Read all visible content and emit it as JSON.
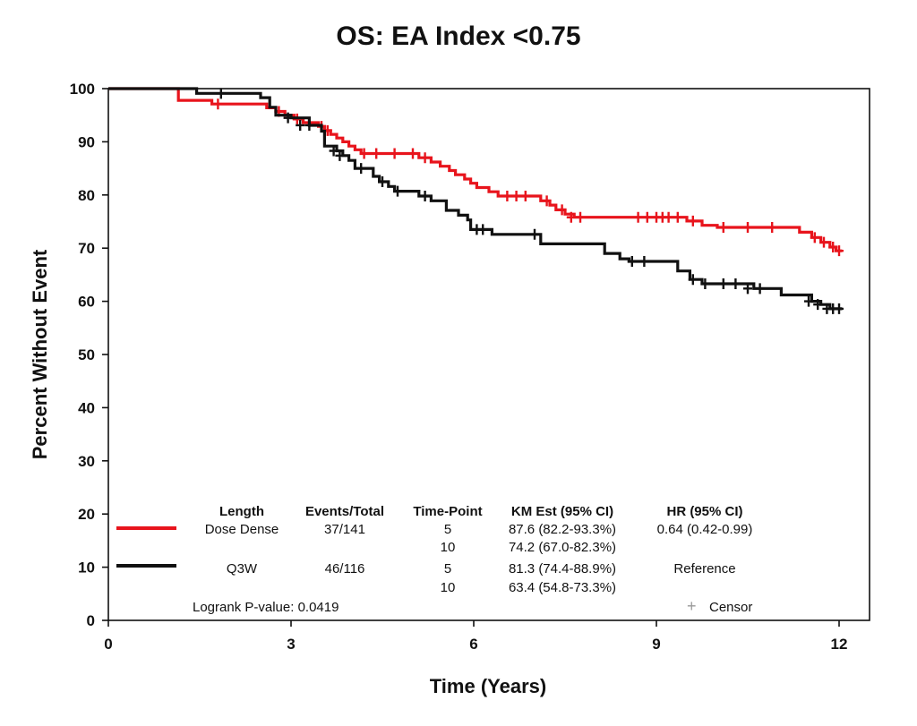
{
  "chart_data": {
    "type": "line",
    "title": "OS: EA Index <0.75",
    "xlabel": "Time (Years)",
    "ylabel": "Percent Without Event",
    "xlim": [
      0,
      12.5
    ],
    "ylim": [
      0,
      100
    ],
    "xticks": [
      0,
      3,
      6,
      9,
      12
    ],
    "yticks": [
      0,
      10,
      20,
      30,
      40,
      50,
      60,
      70,
      80,
      90,
      100
    ],
    "grid": false,
    "step": true,
    "series": [
      {
        "name": "Dose Dense",
        "color": "#e8141c",
        "points": [
          [
            0,
            100
          ],
          [
            0.7,
            100
          ],
          [
            1.1,
            100
          ],
          [
            1.15,
            97.8
          ],
          [
            1.7,
            97.1
          ],
          [
            2.6,
            96.4
          ],
          [
            2.75,
            95.7
          ],
          [
            2.9,
            95.0
          ],
          [
            3.05,
            94.3
          ],
          [
            3.2,
            93.6
          ],
          [
            3.45,
            92.9
          ],
          [
            3.55,
            92.1
          ],
          [
            3.65,
            91.4
          ],
          [
            3.75,
            90.7
          ],
          [
            3.85,
            90.0
          ],
          [
            3.95,
            89.2
          ],
          [
            4.05,
            88.5
          ],
          [
            4.15,
            87.8
          ],
          [
            4.85,
            87.8
          ],
          [
            5.1,
            87.0
          ],
          [
            5.3,
            86.2
          ],
          [
            5.45,
            85.4
          ],
          [
            5.6,
            84.6
          ],
          [
            5.7,
            83.8
          ],
          [
            5.85,
            83.0
          ],
          [
            5.95,
            82.2
          ],
          [
            6.05,
            81.4
          ],
          [
            6.25,
            80.6
          ],
          [
            6.4,
            79.8
          ],
          [
            6.9,
            79.8
          ],
          [
            7.1,
            78.9
          ],
          [
            7.25,
            78.1
          ],
          [
            7.35,
            77.2
          ],
          [
            7.5,
            76.4
          ],
          [
            7.65,
            75.8
          ],
          [
            9.4,
            75.8
          ],
          [
            9.5,
            75.1
          ],
          [
            9.75,
            74.3
          ],
          [
            10.0,
            73.9
          ],
          [
            11.25,
            73.9
          ],
          [
            11.35,
            73.0
          ],
          [
            11.55,
            72.0
          ],
          [
            11.7,
            71.1
          ],
          [
            11.85,
            70.2
          ],
          [
            11.95,
            69.5
          ],
          [
            12.05,
            69.5
          ]
        ],
        "censor_points": [
          [
            1.8,
            97.1
          ],
          [
            2.8,
            95.7
          ],
          [
            3.1,
            94.3
          ],
          [
            3.5,
            92.9
          ],
          [
            3.6,
            92.1
          ],
          [
            4.2,
            87.8
          ],
          [
            4.4,
            87.8
          ],
          [
            4.7,
            87.8
          ],
          [
            5.0,
            87.8
          ],
          [
            5.2,
            87.0
          ],
          [
            6.55,
            79.8
          ],
          [
            6.7,
            79.8
          ],
          [
            6.85,
            79.8
          ],
          [
            7.2,
            78.9
          ],
          [
            7.45,
            77.2
          ],
          [
            7.6,
            75.8
          ],
          [
            7.75,
            75.8
          ],
          [
            8.7,
            75.8
          ],
          [
            8.85,
            75.8
          ],
          [
            9.0,
            75.8
          ],
          [
            9.1,
            75.8
          ],
          [
            9.2,
            75.8
          ],
          [
            9.35,
            75.8
          ],
          [
            9.6,
            75.1
          ],
          [
            10.1,
            73.9
          ],
          [
            10.5,
            73.9
          ],
          [
            10.9,
            73.9
          ],
          [
            11.6,
            72.0
          ],
          [
            11.75,
            71.1
          ],
          [
            11.9,
            70.2
          ],
          [
            12.0,
            69.5
          ]
        ]
      },
      {
        "name": "Q3W",
        "color": "#111111",
        "points": [
          [
            0,
            100
          ],
          [
            1.4,
            100
          ],
          [
            1.45,
            99.1
          ],
          [
            2.5,
            98.3
          ],
          [
            2.65,
            96.5
          ],
          [
            2.75,
            95.0
          ],
          [
            3.0,
            94.5
          ],
          [
            3.3,
            93.1
          ],
          [
            3.5,
            92.0
          ],
          [
            3.55,
            89.2
          ],
          [
            3.75,
            88.3
          ],
          [
            3.85,
            87.4
          ],
          [
            3.95,
            86.5
          ],
          [
            4.05,
            85.0
          ],
          [
            4.35,
            83.5
          ],
          [
            4.45,
            82.5
          ],
          [
            4.6,
            81.6
          ],
          [
            4.7,
            80.7
          ],
          [
            5.0,
            80.7
          ],
          [
            5.1,
            79.8
          ],
          [
            5.3,
            78.9
          ],
          [
            5.55,
            77.1
          ],
          [
            5.75,
            76.2
          ],
          [
            5.9,
            75.3
          ],
          [
            5.95,
            73.5
          ],
          [
            6.0,
            73.5
          ],
          [
            6.3,
            72.6
          ],
          [
            6.9,
            72.6
          ],
          [
            7.1,
            70.8
          ],
          [
            7.95,
            70.8
          ],
          [
            8.15,
            69.0
          ],
          [
            8.4,
            68.0
          ],
          [
            8.55,
            67.5
          ],
          [
            9.15,
            67.5
          ],
          [
            9.35,
            65.7
          ],
          [
            9.55,
            64.1
          ],
          [
            9.75,
            63.3
          ],
          [
            10.4,
            63.3
          ],
          [
            10.6,
            62.4
          ],
          [
            11.0,
            62.4
          ],
          [
            11.05,
            61.2
          ],
          [
            11.55,
            60.0
          ],
          [
            11.7,
            59.4
          ],
          [
            11.85,
            58.6
          ],
          [
            12.05,
            58.6
          ]
        ],
        "censor_points": [
          [
            1.85,
            99.1
          ],
          [
            2.95,
            94.5
          ],
          [
            3.15,
            93.1
          ],
          [
            3.3,
            93.1
          ],
          [
            3.7,
            88.3
          ],
          [
            3.8,
            87.4
          ],
          [
            4.15,
            85.0
          ],
          [
            4.5,
            82.5
          ],
          [
            4.75,
            80.7
          ],
          [
            5.2,
            79.8
          ],
          [
            6.05,
            73.5
          ],
          [
            6.15,
            73.5
          ],
          [
            7.0,
            72.6
          ],
          [
            8.6,
            67.5
          ],
          [
            8.8,
            67.5
          ],
          [
            9.6,
            64.1
          ],
          [
            9.8,
            63.3
          ],
          [
            10.1,
            63.3
          ],
          [
            10.3,
            63.3
          ],
          [
            10.5,
            62.4
          ],
          [
            10.7,
            62.4
          ],
          [
            11.5,
            60.0
          ],
          [
            11.65,
            59.4
          ],
          [
            11.8,
            58.6
          ],
          [
            11.9,
            58.6
          ],
          [
            12.0,
            58.6
          ]
        ]
      }
    ],
    "legend": {
      "headers": [
        "Length",
        "Events/Total",
        "Time-Point",
        "KM Est (95% CI)",
        "HR (95% CI)"
      ],
      "rows": [
        {
          "length": "Dose Dense",
          "events_total": "37/141",
          "time_point": "5",
          "km_est": "87.6 (82.2-93.3%)",
          "hr": "0.64 (0.42-0.99)"
        },
        {
          "length": "",
          "events_total": "",
          "time_point": "10",
          "km_est": "74.2 (67.0-82.3%)",
          "hr": ""
        },
        {
          "length": "Q3W",
          "events_total": "46/116",
          "time_point": "5",
          "km_est": "81.3 (74.4-88.9%)",
          "hr": "Reference"
        },
        {
          "length": "",
          "events_total": "",
          "time_point": "10",
          "km_est": "63.4 (54.8-73.3%)",
          "hr": ""
        }
      ],
      "logrank": "Logrank P-value: 0.0419",
      "censor_label": "Censor",
      "censor_glyph": "+"
    }
  }
}
